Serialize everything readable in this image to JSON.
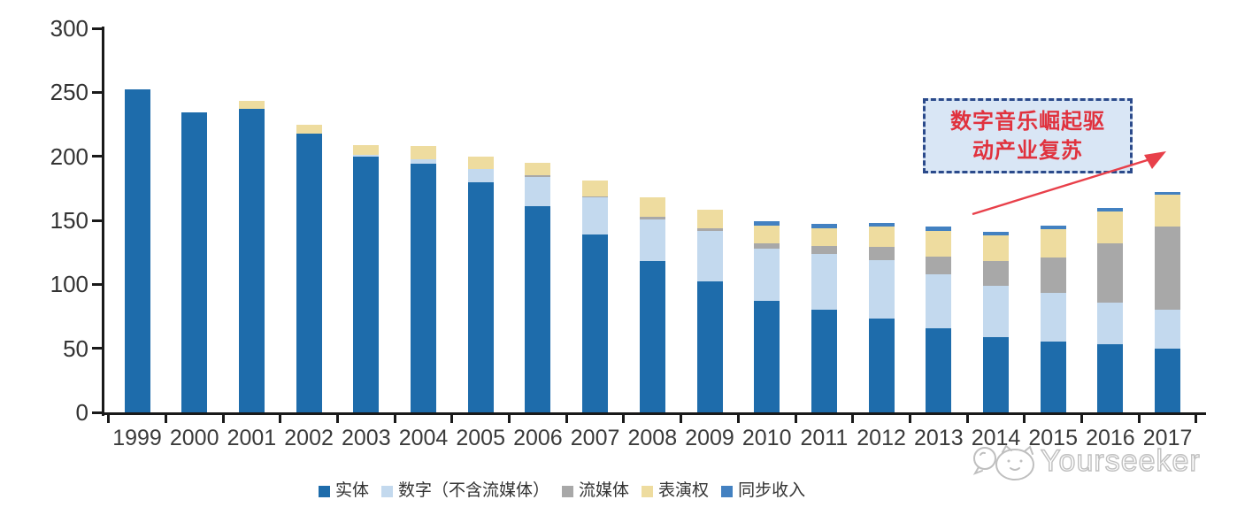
{
  "chart_data": {
    "type": "bar",
    "stacked": true,
    "title": "",
    "xlabel": "",
    "ylabel": "",
    "ylim": [
      0,
      300
    ],
    "yticks": [
      0,
      50,
      100,
      150,
      200,
      250,
      300
    ],
    "grid": false,
    "legend_position": "bottom",
    "categories": [
      "1999",
      "2000",
      "2001",
      "2002",
      "2003",
      "2004",
      "2005",
      "2006",
      "2007",
      "2008",
      "2009",
      "2010",
      "2011",
      "2012",
      "2013",
      "2014",
      "2015",
      "2016",
      "2017"
    ],
    "series": [
      {
        "key": "physical",
        "name": "实体",
        "color": "#1e6cab",
        "values": [
          252,
          234,
          237,
          218,
          200,
          194,
          180,
          161,
          139,
          118,
          102,
          87,
          80,
          73,
          66,
          59,
          55,
          53,
          50
        ]
      },
      {
        "key": "digital-excl-streaming",
        "name": "数字（不含流媒体）",
        "color": "#c3d9ee",
        "values": [
          0,
          0,
          0,
          0,
          1,
          4,
          10,
          23,
          29,
          33,
          40,
          41,
          44,
          46,
          42,
          40,
          38,
          33,
          30
        ]
      },
      {
        "key": "streaming",
        "name": "流媒体",
        "color": "#a8a8a8",
        "values": [
          0,
          0,
          0,
          0,
          0,
          0,
          0,
          1,
          1,
          2,
          2,
          4,
          6,
          10,
          14,
          19,
          28,
          46,
          65
        ]
      },
      {
        "key": "performance-rights",
        "name": "表演权",
        "color": "#eedc9f",
        "values": [
          0,
          0,
          6,
          7,
          8,
          10,
          10,
          10,
          12,
          15,
          14,
          14,
          14,
          16,
          20,
          20,
          22,
          25,
          25
        ]
      },
      {
        "key": "sync-revenue",
        "name": "同步收入",
        "color": "#4381c1",
        "values": [
          0,
          0,
          0,
          0,
          0,
          0,
          0,
          0,
          0,
          0,
          0,
          3,
          3,
          3,
          3,
          3,
          3,
          3,
          2
        ]
      }
    ]
  },
  "annotation": {
    "line1": "数字音乐崛起驱",
    "line2": "动产业复苏"
  },
  "watermark": {
    "text": "Yourseeker",
    "logo": "cat-icon"
  },
  "colors": {
    "axis": "#1a1a1a",
    "tick_label": "#333333",
    "annotation_text": "#e0323e",
    "annotation_border": "#2b4a8b",
    "annotation_fill": "#d9e6f5",
    "arrow": "#e8404a",
    "watermark": "#c0c0c0"
  }
}
